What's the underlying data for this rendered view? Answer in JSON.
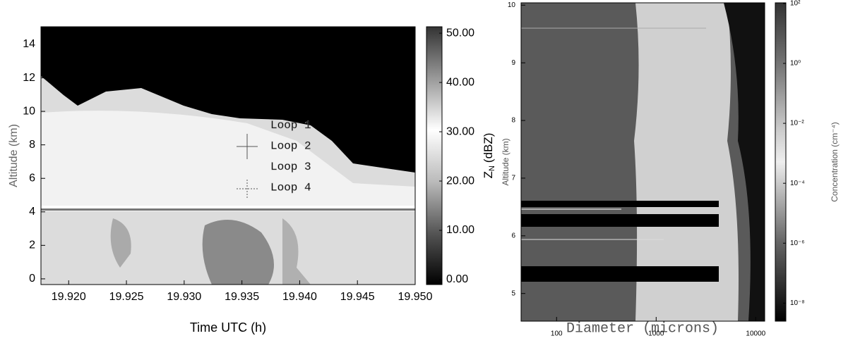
{
  "chart_data": [
    {
      "type": "heatmap",
      "xlabel": "Time UTC (h)",
      "ylabel": "Altitude (km)",
      "xlim": [
        19.9176,
        19.95
      ],
      "xticks": [
        {
          "value": 19.92,
          "label": "19.920"
        },
        {
          "value": 19.925,
          "label": "19.925"
        },
        {
          "value": 19.93,
          "label": "19.930"
        },
        {
          "value": 19.935,
          "label": "19.935"
        },
        {
          "value": 19.94,
          "label": "19.940"
        },
        {
          "value": 19.945,
          "label": "19.945"
        },
        {
          "value": 19.95,
          "label": "19.950"
        }
      ],
      "ylim": [
        -0.34,
        15.05
      ],
      "yticks": [
        0,
        2,
        4,
        6,
        8,
        10,
        12,
        14
      ],
      "colorbar": {
        "label": "Z",
        "label_sub": "N",
        "label_unit": "(dBZ)",
        "lim": [
          -1,
          51.3
        ],
        "ticks": [
          {
            "value": 0,
            "label": "0.00"
          },
          {
            "value": 10,
            "label": "10.00"
          },
          {
            "value": 20,
            "label": "20.00"
          },
          {
            "value": 30,
            "label": "30.00"
          },
          {
            "value": 40,
            "label": "40.00"
          },
          {
            "value": 50,
            "label": "50.00"
          }
        ]
      },
      "annotations": [
        "Loop 1",
        "Loop 2",
        "Loop 3",
        "Loop 4"
      ]
    },
    {
      "type": "heatmap",
      "xlabel": "Diameter (microns)",
      "ylabel": "Altitude (km)",
      "xscale": "log",
      "xlim": [
        44,
        12300
      ],
      "xticks": [
        100,
        1000,
        10000
      ],
      "ylim": [
        4.52,
        10.04
      ],
      "yticks": [
        5,
        6,
        7,
        8,
        9,
        10
      ],
      "colorbar": {
        "label": "Concentration (cm⁻⁴)",
        "scale": "log",
        "lim": [
          2.5e-09,
          105
        ],
        "ticks": [
          {
            "value": 100,
            "label": "10²"
          },
          {
            "value": 1,
            "label": "10⁰"
          },
          {
            "value": 0.01,
            "label": "10⁻²"
          },
          {
            "value": 0.0001,
            "label": "10⁻⁴"
          },
          {
            "value": 1e-06,
            "label": "10⁻⁶"
          },
          {
            "value": 1e-08,
            "label": "10⁻⁸"
          }
        ]
      }
    }
  ]
}
